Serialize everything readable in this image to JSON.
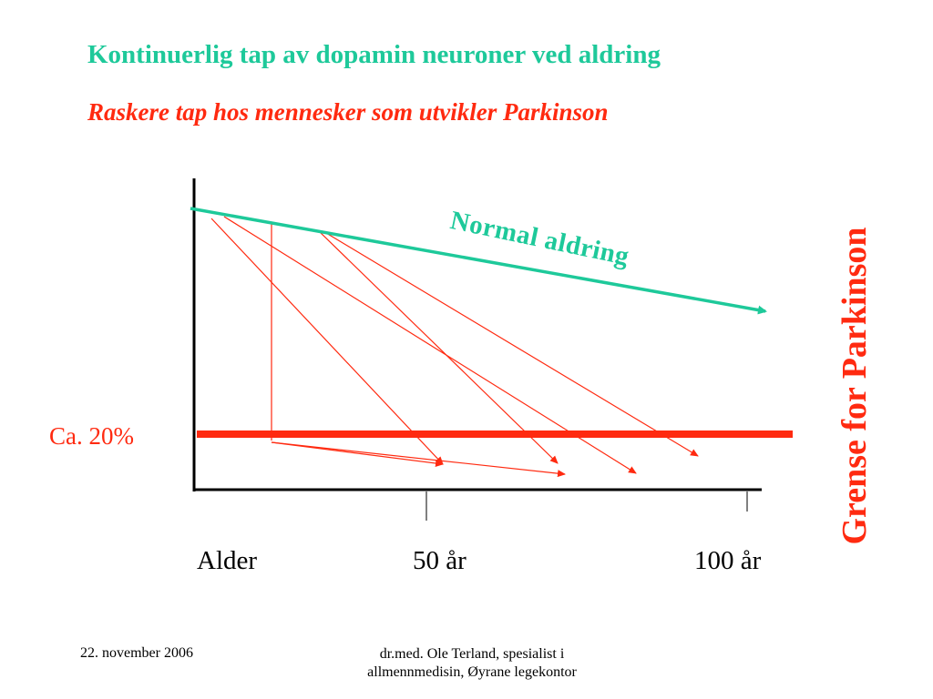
{
  "slide": {
    "title": "Kontinuerlig tap av dopamin neuroner ved aldring",
    "subtitle": "Raskere tap hos mennesker som utvikler Parkinson"
  },
  "diagram": {
    "normal_label": "Normal aldring",
    "threshold_label": "Ca. 20%",
    "vertical_label": "Grense for Parkinson",
    "x_labels": {
      "start": "Alder",
      "mid": "50 år",
      "end": "100 år"
    }
  },
  "footer": {
    "date": "22. november 2006",
    "author_line1": "dr.med. Ole Terland, spesialist i",
    "author_line2": "allmennmedisin,  Øyrane legekontor"
  },
  "colors": {
    "green": "#1ec99a",
    "red": "#ff2a10",
    "axis": "#000000"
  }
}
